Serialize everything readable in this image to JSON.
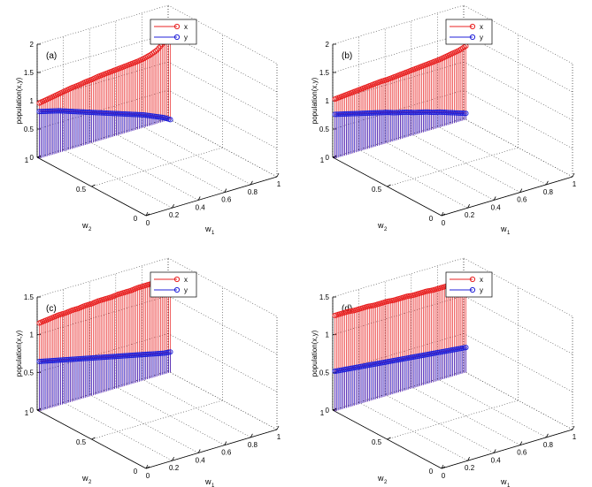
{
  "chart_data": [
    {
      "type": "stem3d",
      "panel_label": "(a)",
      "zlim": [
        0,
        2
      ],
      "z_ticks": [
        "0",
        "0.5",
        "1",
        "1.5",
        "2"
      ],
      "zlabel": "population(x,y)",
      "w1_label": "w",
      "w1_sub": "1",
      "w2_label": "w",
      "w2_sub": "2",
      "w1_ticks": [
        "0",
        "0.2",
        "0.4",
        "0.6",
        "0.8",
        "1"
      ],
      "w2_ticks": [
        "0",
        "0.5",
        "1"
      ],
      "legend": [
        {
          "name": "x",
          "color": "#e82020"
        },
        {
          "name": "y",
          "color": "#2020d8"
        }
      ],
      "series": [
        {
          "name": "x",
          "color": "#e82020",
          "w1": [
            0,
            0.05,
            0.1,
            0.15,
            0.2,
            0.25,
            0.3,
            0.35,
            0.4,
            0.45,
            0.5,
            0.55,
            0.6,
            0.65,
            0.7,
            0.75,
            0.8,
            0.85,
            0.9,
            0.95,
            1
          ],
          "values": [
            0.98,
            1.0,
            1.02,
            1.04,
            1.06,
            1.08,
            1.09,
            1.11,
            1.12,
            1.14,
            1.15,
            1.16,
            1.17,
            1.18,
            1.19,
            1.2,
            1.22,
            1.25,
            1.3,
            1.4,
            1.65
          ]
        },
        {
          "name": "y",
          "color": "#2020d8",
          "w1": [
            0,
            0.05,
            0.1,
            0.15,
            0.2,
            0.25,
            0.3,
            0.35,
            0.4,
            0.45,
            0.5,
            0.55,
            0.6,
            0.65,
            0.7,
            0.75,
            0.8,
            0.85,
            0.9,
            0.95,
            1
          ],
          "values": [
            0.83,
            0.8,
            0.77,
            0.74,
            0.7,
            0.66,
            0.62,
            0.58,
            0.54,
            0.5,
            0.46,
            0.42,
            0.38,
            0.34,
            0.3,
            0.26,
            0.22,
            0.17,
            0.12,
            0.07,
            0.0
          ]
        }
      ]
    },
    {
      "type": "stem3d",
      "panel_label": "(b)",
      "zlim": [
        0,
        2
      ],
      "z_ticks": [
        "0",
        "0.5",
        "1",
        "1.5",
        "2"
      ],
      "zlabel": "population(x,y)",
      "w1_label": "w",
      "w1_sub": "1",
      "w2_label": "w",
      "w2_sub": "2",
      "w1_ticks": [
        "0",
        "0.2",
        "0.4",
        "0.6",
        "0.8",
        "1"
      ],
      "w2_ticks": [
        "0",
        "0.5",
        "1"
      ],
      "legend": [
        {
          "name": "x",
          "color": "#e82020"
        },
        {
          "name": "y",
          "color": "#2020d8"
        }
      ],
      "series": [
        {
          "name": "x",
          "color": "#e82020",
          "w1": [
            0,
            0.05,
            0.1,
            0.15,
            0.2,
            0.25,
            0.3,
            0.35,
            0.4,
            0.45,
            0.5,
            0.55,
            0.6,
            0.65,
            0.7,
            0.75,
            0.8,
            0.85,
            0.9,
            0.95,
            1
          ],
          "values": [
            1.05,
            1.06,
            1.07,
            1.08,
            1.09,
            1.1,
            1.11,
            1.12,
            1.12,
            1.13,
            1.14,
            1.15,
            1.16,
            1.17,
            1.18,
            1.19,
            1.2,
            1.22,
            1.24,
            1.26,
            1.3
          ]
        },
        {
          "name": "y",
          "color": "#2020d8",
          "w1": [
            0,
            0.05,
            0.1,
            0.15,
            0.2,
            0.25,
            0.3,
            0.35,
            0.4,
            0.45,
            0.5,
            0.55,
            0.6,
            0.65,
            0.7,
            0.75,
            0.8,
            0.85,
            0.9,
            0.95,
            1
          ],
          "values": [
            0.78,
            0.75,
            0.72,
            0.69,
            0.66,
            0.63,
            0.6,
            0.57,
            0.54,
            0.5,
            0.47,
            0.44,
            0.4,
            0.37,
            0.34,
            0.3,
            0.27,
            0.23,
            0.19,
            0.15,
            0.11
          ]
        }
      ]
    },
    {
      "type": "stem3d",
      "panel_label": "(c)",
      "zlim": [
        0,
        1.5
      ],
      "z_ticks": [
        "0",
        "0.5",
        "1",
        "1.5"
      ],
      "zlabel": "population(x,y)",
      "w1_label": "w",
      "w1_sub": "1",
      "w2_label": "w",
      "w2_sub": "2",
      "w1_ticks": [
        "0",
        "0.2",
        "0.4",
        "0.6",
        "0.8",
        "1"
      ],
      "w2_ticks": [
        "0",
        "0.5",
        "1"
      ],
      "legend": [
        {
          "name": "x",
          "color": "#e82020"
        },
        {
          "name": "y",
          "color": "#2020d8"
        }
      ],
      "series": [
        {
          "name": "x",
          "color": "#e82020",
          "w1": [
            0,
            0.05,
            0.1,
            0.15,
            0.2,
            0.25,
            0.3,
            0.35,
            0.4,
            0.45,
            0.5,
            0.55,
            0.6,
            0.65,
            0.7,
            0.75,
            0.8,
            0.85,
            0.9,
            0.95,
            1
          ],
          "values": [
            1.17,
            1.18,
            1.19,
            1.2,
            1.2,
            1.21,
            1.21,
            1.22,
            1.22,
            1.23,
            1.23,
            1.23,
            1.24,
            1.24,
            1.24,
            1.25,
            1.25,
            1.25,
            1.25,
            1.26,
            1.26
          ]
        },
        {
          "name": "y",
          "color": "#2020d8",
          "w1": [
            0,
            0.05,
            0.1,
            0.15,
            0.2,
            0.25,
            0.3,
            0.35,
            0.4,
            0.45,
            0.5,
            0.55,
            0.6,
            0.65,
            0.7,
            0.75,
            0.8,
            0.85,
            0.9,
            0.95,
            1
          ],
          "values": [
            0.66,
            0.64,
            0.62,
            0.6,
            0.58,
            0.56,
            0.54,
            0.52,
            0.5,
            0.48,
            0.46,
            0.44,
            0.42,
            0.4,
            0.38,
            0.36,
            0.34,
            0.32,
            0.3,
            0.28,
            0.27
          ]
        }
      ]
    },
    {
      "type": "stem3d",
      "panel_label": "(d)",
      "zlim": [
        0,
        1.5
      ],
      "z_ticks": [
        "0",
        "0.5",
        "1",
        "1.5"
      ],
      "zlabel": "population(x,y)",
      "w1_label": "w",
      "w1_sub": "1",
      "w2_label": "w",
      "w2_sub": "2",
      "w1_ticks": [
        "0",
        "0.2",
        "0.4",
        "0.6",
        "0.8",
        "1"
      ],
      "w2_ticks": [
        "0",
        "0.5",
        "1"
      ],
      "legend": [
        {
          "name": "x",
          "color": "#e82020"
        },
        {
          "name": "y",
          "color": "#2020d8"
        }
      ],
      "series": [
        {
          "name": "x",
          "color": "#e82020",
          "w1": [
            0,
            0.05,
            0.1,
            0.15,
            0.2,
            0.25,
            0.3,
            0.35,
            0.4,
            0.45,
            0.5,
            0.55,
            0.6,
            0.65,
            0.7,
            0.75,
            0.8,
            0.85,
            0.9,
            0.95,
            1
          ],
          "values": [
            1.27,
            1.27,
            1.27,
            1.26,
            1.26,
            1.26,
            1.25,
            1.25,
            1.25,
            1.24,
            1.24,
            1.24,
            1.23,
            1.23,
            1.23,
            1.22,
            1.22,
            1.22,
            1.21,
            1.21,
            1.2
          ]
        },
        {
          "name": "y",
          "color": "#2020d8",
          "w1": [
            0,
            0.05,
            0.1,
            0.15,
            0.2,
            0.25,
            0.3,
            0.35,
            0.4,
            0.45,
            0.5,
            0.55,
            0.6,
            0.65,
            0.7,
            0.75,
            0.8,
            0.85,
            0.9,
            0.95,
            1
          ],
          "values": [
            0.53,
            0.52,
            0.51,
            0.5,
            0.49,
            0.48,
            0.47,
            0.46,
            0.45,
            0.44,
            0.43,
            0.42,
            0.41,
            0.4,
            0.39,
            0.38,
            0.37,
            0.36,
            0.35,
            0.34,
            0.33
          ]
        }
      ]
    }
  ]
}
